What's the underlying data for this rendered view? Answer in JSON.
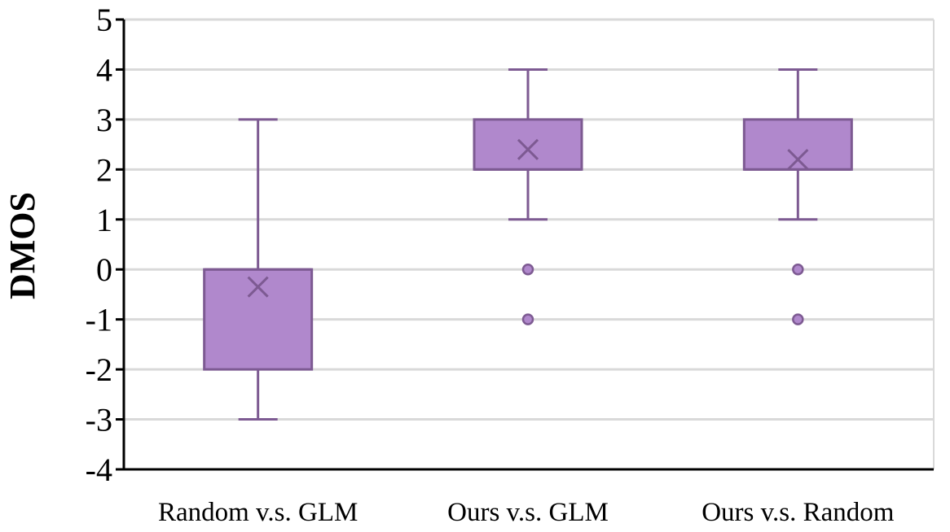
{
  "chart_data": {
    "type": "box",
    "title": "",
    "xlabel": "",
    "ylabel": "DMOS",
    "ylim": [
      -4,
      5
    ],
    "yticks": [
      5,
      4,
      3,
      2,
      1,
      0,
      -1,
      -2,
      -3,
      -4
    ],
    "ytick_labels": [
      "5",
      "4",
      "3",
      "2",
      "1",
      "0",
      "-1",
      "-2",
      "-3",
      "-4"
    ],
    "grid": true,
    "legend": "none",
    "colors": {
      "box_fill": "#b088cc",
      "box_stroke": "#7d5a92",
      "grid": "#d9d9d9",
      "axis": "#000000"
    },
    "categories": [
      "Random  v.s. GLM",
      "Ours  v.s. GLM",
      "Ours v.s. Random"
    ],
    "boxes": [
      {
        "category": "Random  v.s. GLM",
        "whisker_low": -3,
        "q1": -2,
        "median": 0,
        "q3": 0,
        "whisker_high": 3,
        "mean": -0.35,
        "outliers": []
      },
      {
        "category": "Ours  v.s. GLM",
        "whisker_low": 1,
        "q1": 2,
        "median": 2,
        "q3": 3,
        "whisker_high": 4,
        "mean": 2.4,
        "outliers": [
          0,
          -1
        ]
      },
      {
        "category": "Ours v.s. Random",
        "whisker_low": 1,
        "q1": 2,
        "median": 2,
        "q3": 3,
        "whisker_high": 4,
        "mean": 2.2,
        "outliers": [
          0,
          -1
        ]
      }
    ]
  }
}
